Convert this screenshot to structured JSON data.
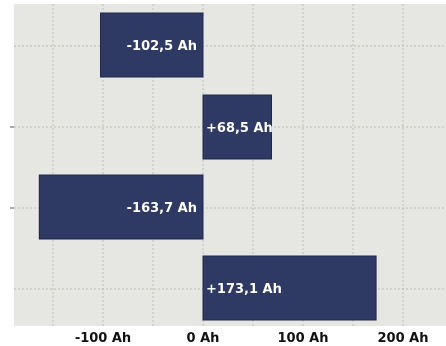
{
  "chart_data": {
    "type": "bar",
    "orientation": "horizontal",
    "categories": [
      "",
      "",
      "",
      ""
    ],
    "values": [
      -102.5,
      68.5,
      -163.7,
      173.1
    ],
    "value_labels": [
      "-102,5 Ah",
      "+68,5 Ah",
      "-163,7 Ah",
      "+173,1 Ah"
    ],
    "x_ticks": [
      {
        "value": -100,
        "label": "-100 Ah"
      },
      {
        "value": 0,
        "label": "0 Ah"
      },
      {
        "value": 100,
        "label": "100 Ah"
      },
      {
        "value": 200,
        "label": "200 Ah"
      }
    ],
    "xlim": [
      -200,
      220
    ],
    "xlabel": "",
    "ylabel": "",
    "title": "",
    "grid": true,
    "colors": {
      "bar": "#2f3a64",
      "plot_background": "#e6e7e3",
      "grid": "#b9bcb6",
      "label": "#ffffff"
    }
  }
}
